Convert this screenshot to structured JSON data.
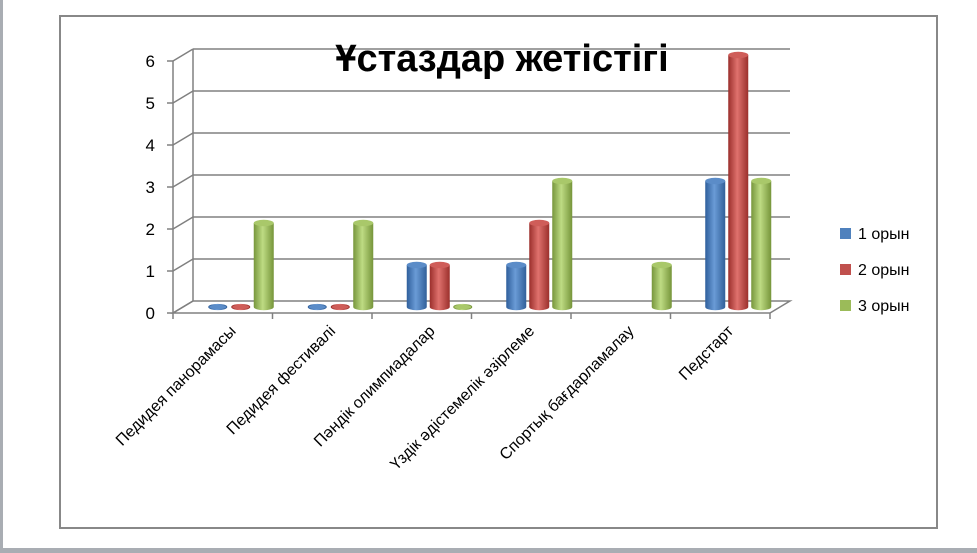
{
  "chart_data": {
    "type": "bar",
    "title": "Ұстаздар жетістігі",
    "categories": [
      "Педидея  панорамасы",
      "Педидея фестивалі",
      "Пәндік олимпиадалар",
      "Үздік  әдістемелік әзірлеме",
      "Спортық  бағдарламалау",
      "Педстарт"
    ],
    "series": [
      {
        "name": "1 орын",
        "values": [
          0,
          0,
          1,
          1,
          null,
          3
        ]
      },
      {
        "name": "2 орын",
        "values": [
          0,
          0,
          1,
          2,
          null,
          6
        ]
      },
      {
        "name": "3 орын",
        "values": [
          2,
          2,
          0,
          3,
          1,
          3
        ]
      }
    ],
    "ylim": [
      0,
      6
    ],
    "yticks": [
      0,
      1,
      2,
      3,
      4,
      5,
      6
    ],
    "grid": true,
    "legend": "right",
    "colors": {
      "1 орын": "#4f81bd",
      "2 орын": "#c0504d",
      "3 орын": "#9bbb59"
    }
  }
}
